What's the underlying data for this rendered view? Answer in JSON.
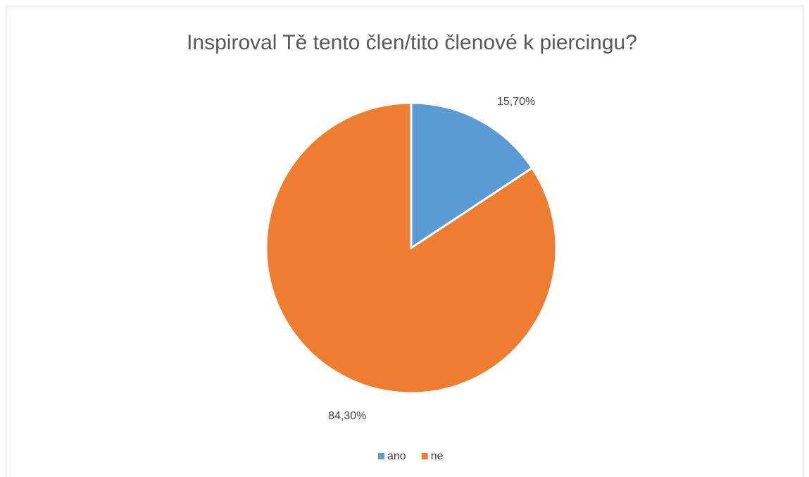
{
  "chart_data": {
    "type": "pie",
    "title": "Inspiroval Tě tento člen/tito členové k piercingu?",
    "categories": [
      "ano",
      "ne"
    ],
    "values": [
      15.7,
      84.3
    ],
    "value_labels": [
      "15,70%",
      "84,30%"
    ],
    "colors": [
      "#5b9bd5",
      "#ed7d31"
    ],
    "legend": "bottom"
  }
}
